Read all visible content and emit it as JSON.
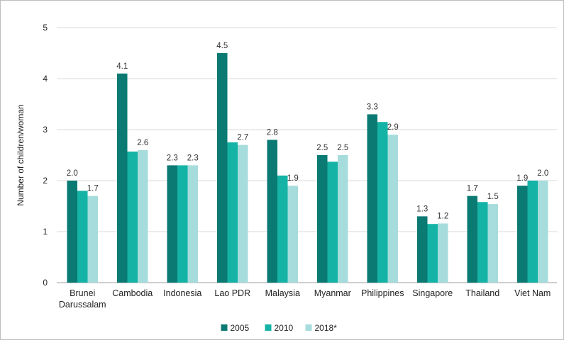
{
  "chart_data": {
    "type": "bar",
    "title": "",
    "xlabel": "",
    "ylabel": "Number of children/woman",
    "ylim": [
      0,
      5
    ],
    "yticks": [
      0,
      1,
      2,
      3,
      4,
      5
    ],
    "grid": true,
    "legend_position": "bottom",
    "categories": [
      [
        "Brunei",
        "Darussalam"
      ],
      [
        "Cambodia"
      ],
      [
        "Indonesia"
      ],
      [
        "Lao PDR"
      ],
      [
        "Malaysia"
      ],
      [
        "Myanmar"
      ],
      [
        "Philippines"
      ],
      [
        "Singapore"
      ],
      [
        "Thailand"
      ],
      [
        "Viet Nam"
      ]
    ],
    "series": [
      {
        "name": "2005",
        "color": "#0a7a73",
        "values": [
          2.0,
          4.1,
          2.3,
          4.5,
          2.8,
          2.5,
          3.3,
          1.3,
          1.7,
          1.9
        ]
      },
      {
        "name": "2010",
        "color": "#14b3a6",
        "values": [
          1.8,
          2.57,
          2.3,
          2.75,
          2.1,
          2.37,
          3.15,
          1.15,
          1.58,
          2.0
        ]
      },
      {
        "name": "2018*",
        "color": "#a7dcdc",
        "values": [
          1.7,
          2.6,
          2.3,
          2.7,
          1.9,
          2.5,
          2.9,
          1.16,
          1.54,
          2.0
        ]
      }
    ],
    "data_labels": [
      [
        "2.0",
        null,
        "1.7"
      ],
      [
        "4.1",
        null,
        "2.6"
      ],
      [
        "2.3",
        null,
        "2.3"
      ],
      [
        "4.5",
        null,
        "2.7"
      ],
      [
        "2.8",
        null,
        "1.9"
      ],
      [
        "2.5",
        null,
        "2.5"
      ],
      [
        "3.3",
        null,
        "2.9"
      ],
      [
        "1.3",
        null,
        "1.2"
      ],
      [
        "1.7",
        null,
        "1.5"
      ],
      [
        "1.9",
        null,
        "2.0"
      ]
    ]
  }
}
